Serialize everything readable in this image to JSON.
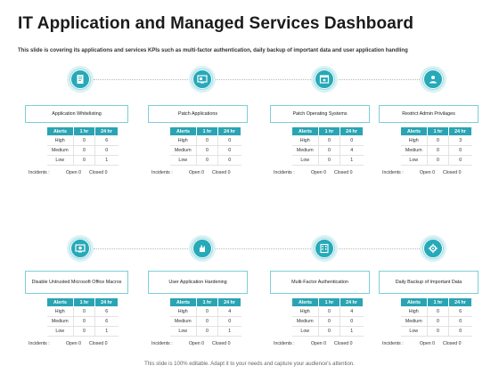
{
  "header": {
    "title": "IT Application and Managed Services Dashboard",
    "subtitle": "This slide is covering its applications and services KPIs such as multi-factor authentication, daily backup of important data and user application handling"
  },
  "footer": {
    "text": "This slide is 100% editable. Adapt it to your needs and capture your audience's attention."
  },
  "columns": [
    "Alerts",
    "1 hr",
    "24 hr"
  ],
  "incidents": {
    "label": "Incidents :",
    "open": "Open 0",
    "closed": "Closed 0"
  },
  "colors": {
    "accent": "#2aa4b3",
    "icon_bg": "#d9f2f5",
    "border": "#7ccfd8"
  },
  "cards": [
    {
      "title": "Application Whitelisting",
      "icon": "document-icon",
      "rows": [
        [
          "High",
          "0",
          "6"
        ],
        [
          "Medium",
          "0",
          "0"
        ],
        [
          "Low",
          "0",
          "1"
        ]
      ]
    },
    {
      "title": "Patch Applications",
      "icon": "monitor-icon",
      "rows": [
        [
          "High",
          "0",
          "0"
        ],
        [
          "Medium",
          "0",
          "0"
        ],
        [
          "Low",
          "0",
          "0"
        ]
      ]
    },
    {
      "title": "Patch Operating Systems",
      "icon": "window-icon",
      "rows": [
        [
          "High",
          "0",
          "0"
        ],
        [
          "Medium",
          "0",
          "4"
        ],
        [
          "Low",
          "0",
          "1"
        ]
      ]
    },
    {
      "title": "Restrict Admin Privilages",
      "icon": "admin-user-icon",
      "rows": [
        [
          "High",
          "0",
          "3"
        ],
        [
          "Medium",
          "0",
          "0"
        ],
        [
          "Low",
          "0",
          "0"
        ]
      ]
    },
    {
      "title": "Disable Untrusted Microsoft Office Macros",
      "icon": "screen-icon",
      "rows": [
        [
          "High",
          "0",
          "6"
        ],
        [
          "Medium",
          "0",
          "6"
        ],
        [
          "Low",
          "0",
          "1"
        ]
      ]
    },
    {
      "title": "User Application Hardening",
      "icon": "hand-icon",
      "rows": [
        [
          "High",
          "0",
          "4"
        ],
        [
          "Medium",
          "0",
          "0"
        ],
        [
          "Low",
          "0",
          "1"
        ]
      ]
    },
    {
      "title": "Multi-Factor Authentication",
      "icon": "keypad-icon",
      "rows": [
        [
          "High",
          "0",
          "4"
        ],
        [
          "Medium",
          "0",
          "0"
        ],
        [
          "Low",
          "0",
          "1"
        ]
      ]
    },
    {
      "title": "Daily Backup of Important Data",
      "icon": "gear-icon",
      "rows": [
        [
          "High",
          "0",
          "6"
        ],
        [
          "Medium",
          "0",
          "0"
        ],
        [
          "Low",
          "0",
          "0"
        ]
      ]
    }
  ]
}
